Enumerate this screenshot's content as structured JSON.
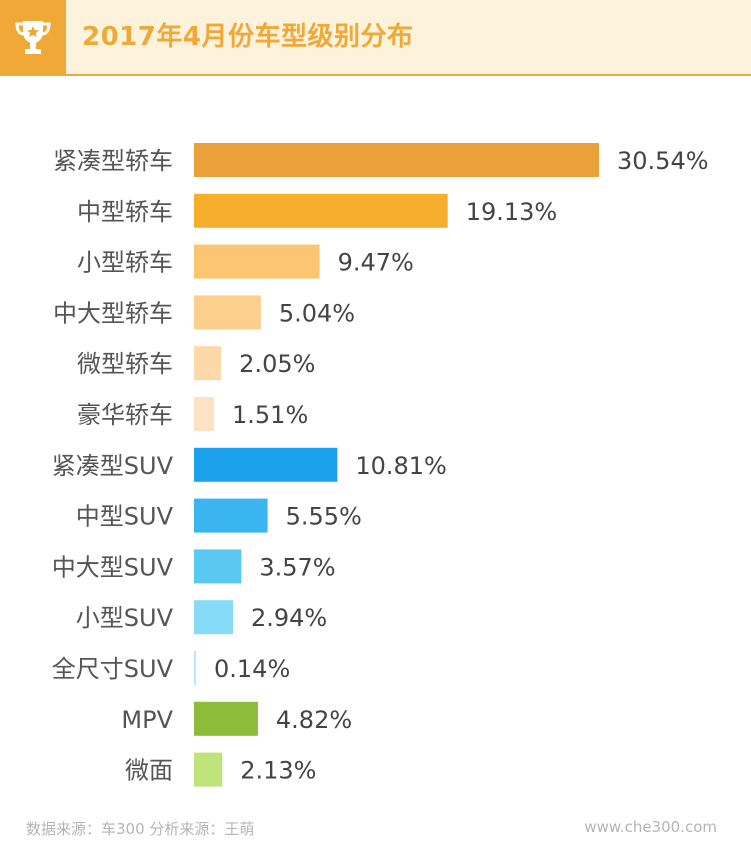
{
  "header": {
    "title": "2017年4月份车型级别分布",
    "icon": "trophy-icon",
    "accent_color": "#f0a836"
  },
  "chart_data": {
    "type": "bar",
    "orientation": "horizontal",
    "title": "2017年4月份车型级别分布",
    "categories": [
      "紧凑型轿车",
      "中型轿车",
      "小型轿车",
      "中大型轿车",
      "微型轿车",
      "豪华轿车",
      "紧凑型SUV",
      "中型SUV",
      "中大型SUV",
      "小型SUV",
      "全尺寸SUV",
      "MPV",
      "微面"
    ],
    "values": [
      30.54,
      19.13,
      9.47,
      5.04,
      2.05,
      1.51,
      10.81,
      5.55,
      3.57,
      2.94,
      0.14,
      4.82,
      2.13
    ],
    "value_labels": [
      "30.54%",
      "19.13%",
      "9.47%",
      "5.04%",
      "2.05%",
      "1.51%",
      "10.81%",
      "5.55%",
      "3.57%",
      "2.94%",
      "0.14%",
      "4.82%",
      "2.13%"
    ],
    "colors": [
      "#eaa13a",
      "#f6ae2d",
      "#fbc572",
      "#fccf8c",
      "#fdd9aa",
      "#fde3c4",
      "#1ba1ec",
      "#3ab5ef",
      "#5ac9f2",
      "#86dbf8",
      "#b6e8fa",
      "#8cbc3a",
      "#bee37a"
    ],
    "xlim": [
      0,
      30.54
    ],
    "grid": false,
    "legend": "none"
  },
  "footer": {
    "source": "数据来源：车300 分析来源：王萌",
    "site": "www.che300.com"
  }
}
